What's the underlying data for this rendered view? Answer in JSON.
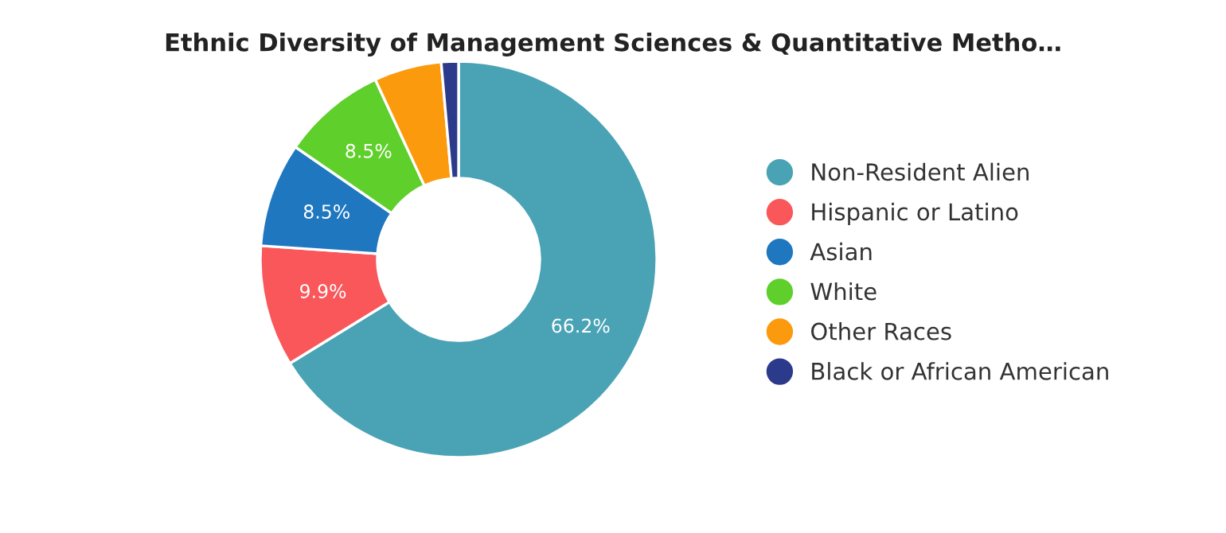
{
  "chart_data": {
    "type": "donut",
    "title": "Ethnic Diversity of Management Sciences & Quantitative Metho…",
    "categories": [
      "Non-Resident Alien",
      "Hispanic or Latino",
      "Asian",
      "White",
      "Other Races",
      "Black or African American"
    ],
    "values": [
      66.2,
      9.9,
      8.5,
      8.5,
      5.5,
      1.4
    ],
    "colors": [
      "#4aa3b5",
      "#f9575a",
      "#1f77c0",
      "#5fcf2b",
      "#fb9a0d",
      "#2c3a8c"
    ],
    "value_labels": [
      "66.2%",
      "9.9%",
      "8.5%",
      "8.5%",
      null,
      null
    ],
    "legend": "right"
  }
}
